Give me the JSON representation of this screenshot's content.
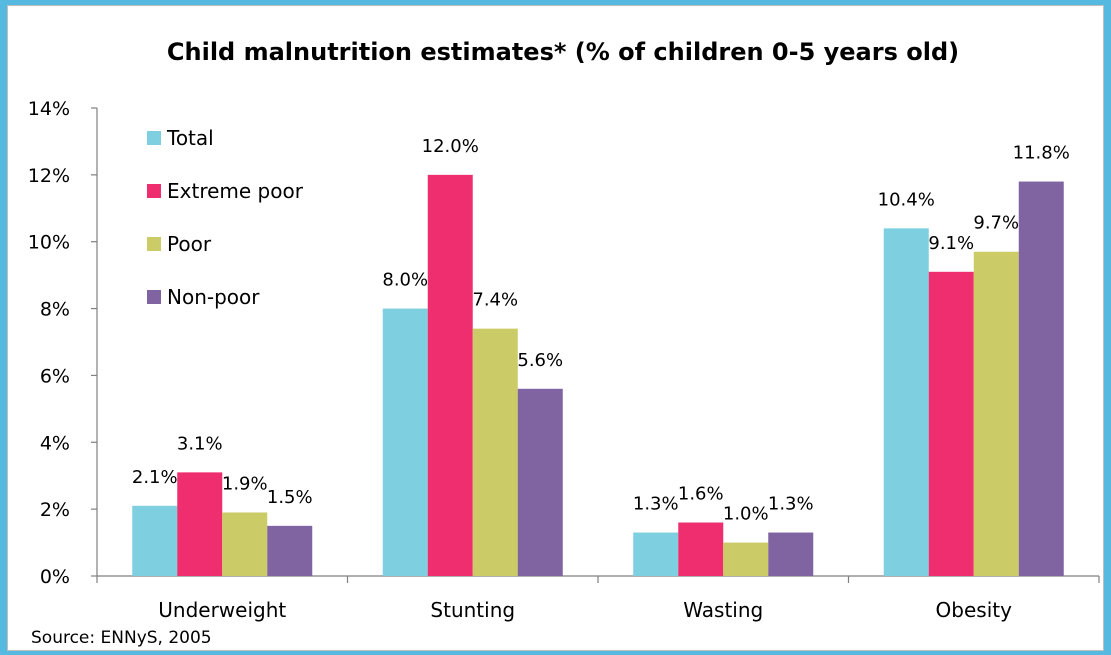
{
  "chart_data": {
    "type": "bar",
    "title": "Child malnutrition estimates* (% of children 0-5 years old)",
    "categories": [
      "Underweight",
      "Stunting",
      "Wasting",
      "Obesity"
    ],
    "series": [
      {
        "name": "Total",
        "color": "#7ECFE0",
        "values": [
          2.1,
          8.0,
          1.3,
          10.4
        ],
        "labels": [
          "2.1%",
          "8.0%",
          "1.3%",
          "10.4%"
        ]
      },
      {
        "name": "Extreme poor",
        "color": "#EE2E6E",
        "values": [
          3.1,
          12.0,
          1.6,
          9.1
        ],
        "labels": [
          "3.1%",
          "12.0%",
          "1.6%",
          "9.1%"
        ]
      },
      {
        "name": "Poor",
        "color": "#CBCB67",
        "values": [
          1.9,
          7.4,
          1.0,
          9.7
        ],
        "labels": [
          "1.9%",
          "7.4%",
          "1.0%",
          "9.7%"
        ]
      },
      {
        "name": "Non-poor",
        "color": "#8064A2",
        "values": [
          1.5,
          5.6,
          1.3,
          11.8
        ],
        "labels": [
          "1.5%",
          "5.6%",
          "1.3%",
          "11.8%"
        ]
      }
    ],
    "ylim": [
      0,
      14
    ],
    "yticks": [
      0,
      2,
      4,
      6,
      8,
      10,
      12,
      14
    ],
    "yticklabels": [
      "0%",
      "2%",
      "4%",
      "6%",
      "8%",
      "10%",
      "12%",
      "14%"
    ],
    "xlabel": "",
    "ylabel": "",
    "grid": false,
    "legend_position": "top-left",
    "source": "Source: ENNyS, 2005"
  },
  "colors": {
    "page_background": "#55B9E0",
    "panel_background": "#FFFFFF"
  }
}
